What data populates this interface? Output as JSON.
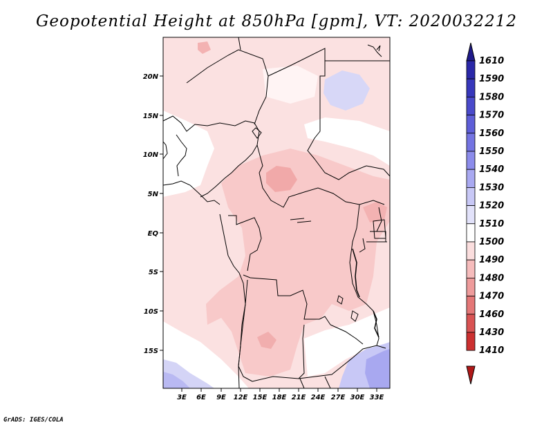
{
  "title": "Geopotential Height at 850hPa [gpm], VT: 2020032212",
  "footer": "GrADS: IGES/COLA",
  "map": {
    "lon_labels": [
      "3E",
      "6E",
      "9E",
      "12E",
      "15E",
      "18E",
      "21E",
      "24E",
      "27E",
      "30E",
      "33E"
    ],
    "lat_labels": [
      "20N",
      "15N",
      "10N",
      "5N",
      "EQ",
      "5S",
      "10S",
      "15S"
    ]
  },
  "colorbar": {
    "levels": [
      "1610",
      "1590",
      "1580",
      "1570",
      "1560",
      "1550",
      "1540",
      "1530",
      "1520",
      "1510",
      "1500",
      "1490",
      "1480",
      "1470",
      "1460",
      "1430",
      "1410"
    ],
    "colors": [
      "#1f1a8a",
      "#2a28a8",
      "#3737bb",
      "#4a4acb",
      "#5e5ed8",
      "#7474e2",
      "#8c8ceb",
      "#a9a9f1",
      "#c8c8f6",
      "#e2e2fa",
      "#ffffff",
      "#fbdede",
      "#f6bcbc",
      "#ee9b9b",
      "#e47777",
      "#d95353",
      "#cc3030",
      "#b01818"
    ]
  }
}
